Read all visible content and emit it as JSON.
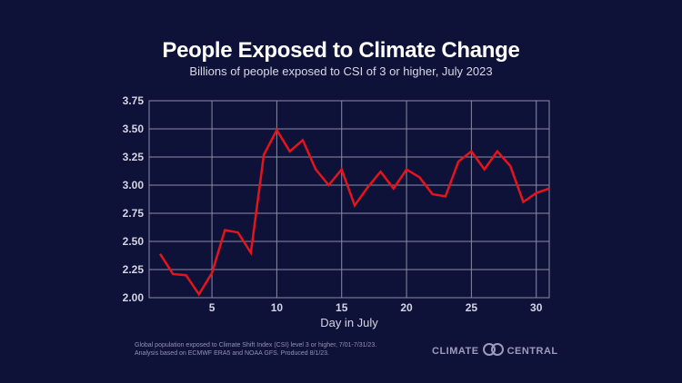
{
  "chart_data": {
    "type": "line",
    "title": "People Exposed to Climate Change",
    "subtitle": "Billions of people exposed to CSI of 3 or higher, July 2023",
    "xlabel": "Day in July",
    "ylabel": "",
    "x": [
      1,
      2,
      3,
      4,
      5,
      6,
      7,
      8,
      9,
      10,
      11,
      12,
      13,
      14,
      15,
      16,
      17,
      18,
      19,
      20,
      21,
      22,
      23,
      24,
      25,
      26,
      27,
      28,
      29,
      30,
      31
    ],
    "series": [
      {
        "values": [
          2.39,
          2.21,
          2.2,
          2.03,
          2.22,
          2.6,
          2.58,
          2.4,
          3.27,
          3.49,
          3.3,
          3.4,
          3.14,
          3.0,
          3.14,
          2.82,
          2.98,
          3.12,
          2.97,
          3.14,
          3.07,
          2.92,
          2.9,
          3.21,
          3.3,
          3.14,
          3.3,
          3.17,
          2.85,
          2.93,
          2.97
        ],
        "color": "#e5141b"
      }
    ],
    "xlim": [
      1,
      31
    ],
    "ylim": [
      2.0,
      3.75
    ],
    "xticks": [
      "5",
      "10",
      "15",
      "20",
      "25",
      "30"
    ],
    "yticks": [
      "2.00",
      "2.25",
      "2.50",
      "2.75",
      "3.00",
      "3.25",
      "3.50",
      "3.75"
    ],
    "grid": true
  },
  "footer": {
    "note_line1": "Global population exposed to Climate Shift Index (CSI) level 3 or higher, 7/01-7/31/23.",
    "note_line2": "Analysis based on ECMWF ERA5 and NOAA GFS. Produced 8/1/23.",
    "logo_left": "CLIMATE",
    "logo_right": "CENTRAL"
  },
  "colors": {
    "background": "#0f1238",
    "line": "#e5141b",
    "grid": "#8a8ca6"
  }
}
